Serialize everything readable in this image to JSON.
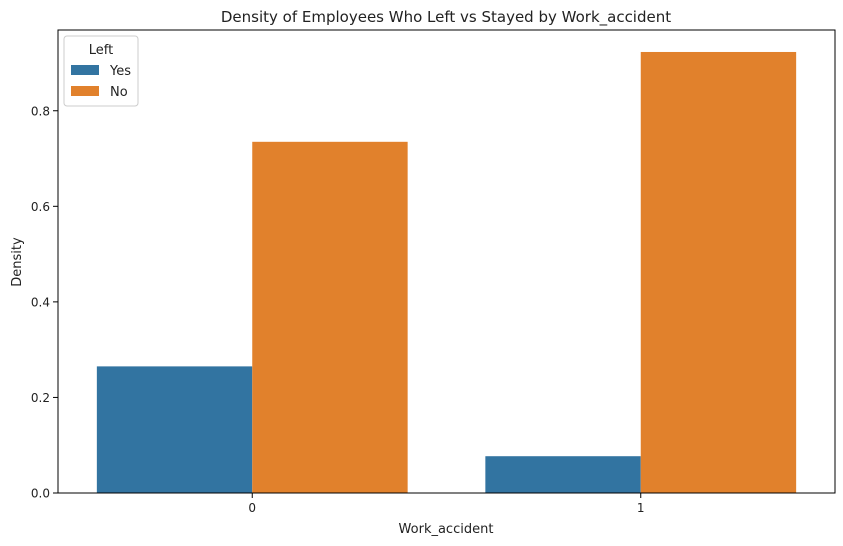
{
  "chart_data": {
    "type": "bar",
    "title": "Density of Employees Who Left vs Stayed by Work_accident",
    "xlabel": "Work_accident",
    "ylabel": "Density",
    "categories": [
      "0",
      "1"
    ],
    "series": [
      {
        "name": "Yes",
        "color": "#3274a1",
        "values": [
          0.265,
          0.077
        ]
      },
      {
        "name": "No",
        "color": "#e1812c",
        "values": [
          0.735,
          0.923
        ]
      }
    ],
    "ylim": [
      0,
      0.969
    ],
    "yticks": [
      0.0,
      0.2,
      0.4,
      0.6,
      0.8
    ],
    "ytick_labels": [
      "0.0",
      "0.2",
      "0.4",
      "0.6",
      "0.8"
    ],
    "legend": {
      "title": "Left",
      "position": "top-left"
    },
    "grid": false
  }
}
